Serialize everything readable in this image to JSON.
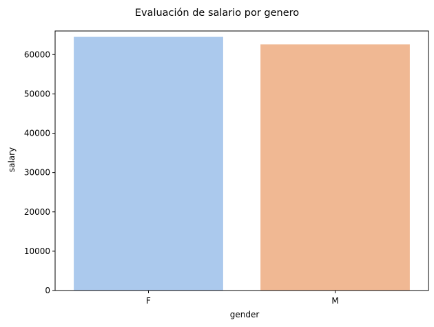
{
  "chart_data": {
    "type": "bar",
    "title": "Evaluación de salario por genero",
    "xlabel": "gender",
    "ylabel": "salary",
    "categories": [
      "F",
      "M"
    ],
    "values": [
      64500,
      62600
    ],
    "colors": [
      "#abc9ed",
      "#f0b893"
    ],
    "ylim": [
      0,
      66000
    ],
    "yticks": [
      0,
      10000,
      20000,
      30000,
      40000,
      50000,
      60000
    ],
    "grid": false,
    "legend": "none"
  }
}
